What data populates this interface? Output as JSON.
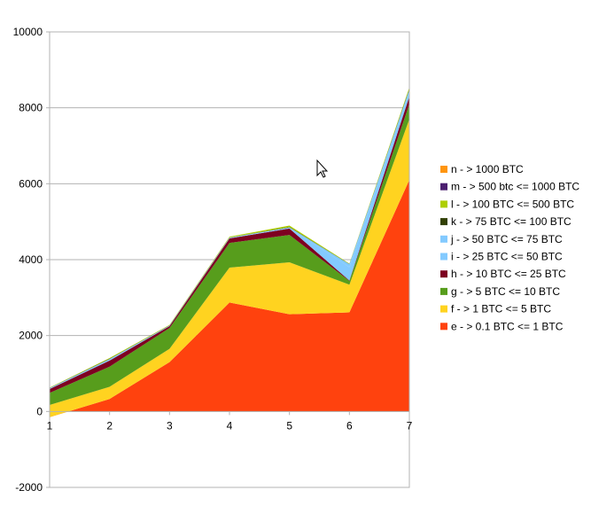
{
  "chart_data": {
    "type": "area",
    "stacked": true,
    "x": [
      1,
      2,
      3,
      4,
      5,
      6,
      7
    ],
    "xlim": [
      1,
      7
    ],
    "ylim": [
      -2000,
      10000
    ],
    "y_ticks": [
      -2000,
      0,
      2000,
      4000,
      6000,
      8000,
      10000
    ],
    "grid": "horizontal",
    "legend_position": "right",
    "series": [
      {
        "name": "e - > 0.1 BTC <= 1 BTC",
        "color": "#ff420e",
        "values": [
          -150,
          330,
          1300,
          2870,
          2560,
          2610,
          6100
        ]
      },
      {
        "name": "f - > 1 BTC <= 5 BTC",
        "color": "#ffd320",
        "values": [
          320,
          320,
          350,
          920,
          1370,
          730,
          1600
        ]
      },
      {
        "name": "g - > 5 BTC <= 10 BTC",
        "color": "#579d1c",
        "values": [
          320,
          530,
          550,
          650,
          720,
          100,
          400
        ]
      },
      {
        "name": "h - > 10 BTC <= 25 BTC",
        "color": "#7e0021",
        "values": [
          100,
          160,
          50,
          120,
          170,
          10,
          200
        ]
      },
      {
        "name": "i - > 25 BTC <= 50 BTC",
        "color": "#83caff",
        "values": [
          20,
          30,
          10,
          10,
          20,
          350,
          120
        ]
      },
      {
        "name": "j - > 50 BTC <= 75 BTC",
        "color": "#83caff",
        "values": [
          5,
          10,
          5,
          10,
          10,
          80,
          60
        ]
      },
      {
        "name": "k - > 75 BTC <= 100 BTC",
        "color": "#314004",
        "values": [
          5,
          10,
          5,
          5,
          10,
          5,
          20
        ]
      },
      {
        "name": "l - > 100 BTC <= 500 BTC",
        "color": "#aecf00",
        "values": [
          10,
          20,
          10,
          20,
          40,
          10,
          40
        ]
      },
      {
        "name": "m - > 500 btc <= 1000 BTC",
        "color": "#4b1f6f",
        "values": [
          0,
          0,
          0,
          0,
          0,
          0,
          0
        ]
      },
      {
        "name": "n - > 1000 BTC",
        "color": "#ff950e",
        "values": [
          0,
          0,
          0,
          0,
          0,
          0,
          0
        ]
      }
    ]
  }
}
